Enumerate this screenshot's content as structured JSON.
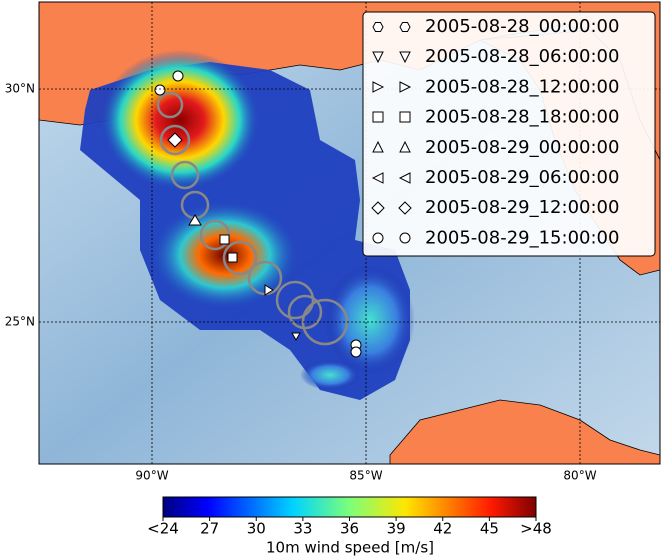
{
  "map": {
    "x_labels": [
      "90°W",
      "85°W",
      "80°W"
    ],
    "y_labels": [
      "30°N",
      "25°N"
    ],
    "legend": [
      "2005-08-28_00:00:00",
      "2005-08-28_06:00:00",
      "2005-08-28_12:00:00",
      "2005-08-28_18:00:00",
      "2005-08-29_00:00:00",
      "2005-08-29_06:00:00",
      "2005-08-29_12:00:00",
      "2005-08-29_15:00:00"
    ],
    "colorbar": {
      "ticks": [
        "<24",
        "27",
        "30",
        "33",
        "36",
        "39",
        "42",
        "45",
        ">48"
      ],
      "label": "10m wind speed [m/s]"
    }
  }
}
